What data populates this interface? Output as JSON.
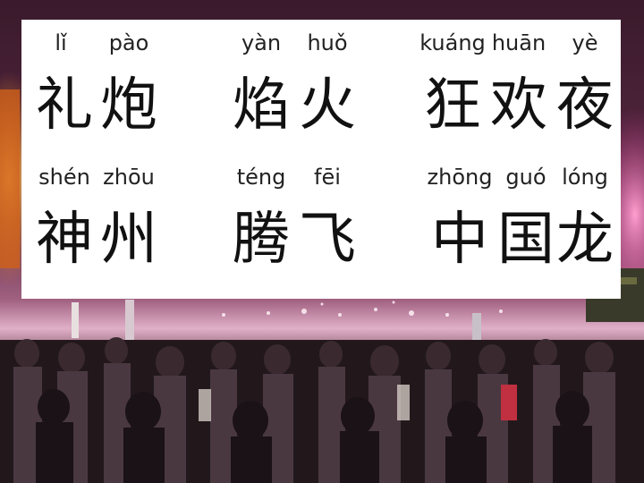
{
  "lesson": {
    "words": [
      {
        "chars": [
          {
            "pinyin": "lǐ",
            "hanzi": "礼"
          },
          {
            "pinyin": "pào",
            "hanzi": "炮"
          }
        ]
      },
      {
        "chars": [
          {
            "pinyin": "yàn",
            "hanzi": "焰"
          },
          {
            "pinyin": "huǒ",
            "hanzi": "火"
          }
        ]
      },
      {
        "chars": [
          {
            "pinyin": "kuáng",
            "hanzi": "狂"
          },
          {
            "pinyin": "huān",
            "hanzi": "欢"
          },
          {
            "pinyin": "yè",
            "hanzi": "夜"
          }
        ]
      },
      {
        "chars": [
          {
            "pinyin": "shén",
            "hanzi": "神"
          },
          {
            "pinyin": "zhōu",
            "hanzi": "州"
          }
        ]
      },
      {
        "chars": [
          {
            "pinyin": "téng",
            "hanzi": "腾"
          },
          {
            "pinyin": "fēi",
            "hanzi": "飞"
          }
        ]
      },
      {
        "chars": [
          {
            "pinyin": "zhōng",
            "hanzi": "中"
          },
          {
            "pinyin": "guó",
            "hanzi": "国"
          },
          {
            "pinyin": "lóng",
            "hanzi": "龙"
          }
        ]
      }
    ]
  }
}
